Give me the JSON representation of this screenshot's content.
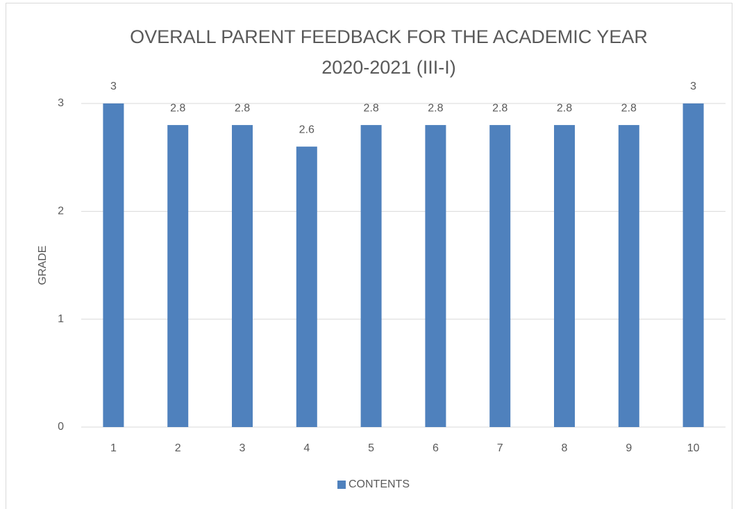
{
  "chart_data": {
    "type": "bar",
    "title": [
      "OVERALL PARENT FEEDBACK FOR THE ACADEMIC YEAR",
      "2020-2021 (III-I)"
    ],
    "y_label": "GRADE",
    "categories": [
      "1",
      "2",
      "3",
      "4",
      "5",
      "6",
      "7",
      "8",
      "9",
      "10"
    ],
    "series": [
      {
        "name": "CONTENTS",
        "color": "#4f81bd",
        "values": [
          3,
          2.8,
          2.8,
          2.6,
          2.8,
          2.8,
          2.8,
          2.8,
          2.8,
          3
        ]
      }
    ],
    "ylim": [
      0,
      3
    ],
    "yticks": [
      0,
      1,
      2,
      3
    ],
    "grid": true,
    "legend": "bottom"
  }
}
